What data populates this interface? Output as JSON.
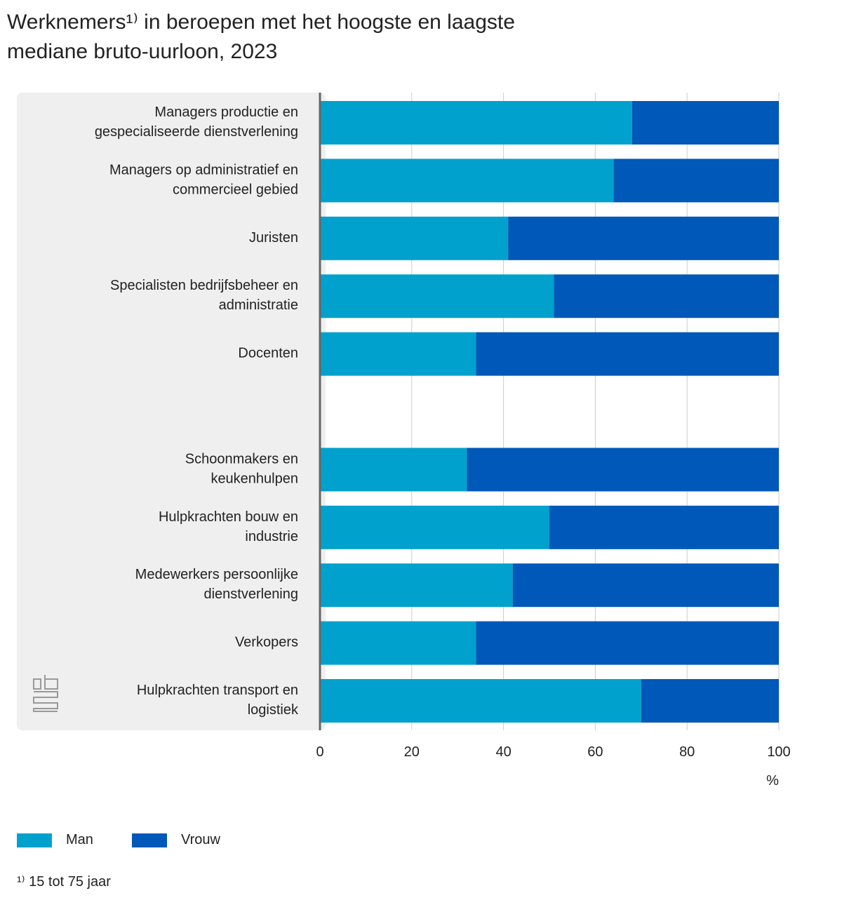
{
  "chart_data": {
    "type": "stacked-barh",
    "title": "Werknemers¹⁾ in beroepen met het hoogste en laagste\nmediane bruto-uurloon, 2023",
    "categories": [
      "Managers productie en\ngespecialiseerde dienstverlening",
      "Managers op administratief en\ncommercieel gebied",
      "Juristen",
      "Specialisten bedrijfsbeheer en\nadministratie",
      "Docenten",
      null,
      "Schoonmakers en\nkeukenhulpen",
      "Hulpkrachten bouw en\nindustrie",
      "Medewerkers persoonlijke\ndienstverlening",
      "Verkopers",
      "Hulpkrachten transport en\nlogistiek"
    ],
    "series": [
      {
        "name": "Man",
        "color": "#00a1cd",
        "values": [
          68,
          64,
          41,
          51,
          34,
          null,
          32,
          50,
          42,
          34,
          70
        ]
      },
      {
        "name": "Vrouw",
        "color": "#0058b8",
        "values": [
          32,
          36,
          59,
          49,
          66,
          null,
          68,
          50,
          58,
          66,
          30
        ]
      }
    ],
    "xlim": [
      0,
      100
    ],
    "xticks": [
      0,
      20,
      40,
      60,
      80,
      100
    ],
    "x_label": "%",
    "grid": true,
    "footnote": "¹⁾ 15 tot 75 jaar"
  }
}
